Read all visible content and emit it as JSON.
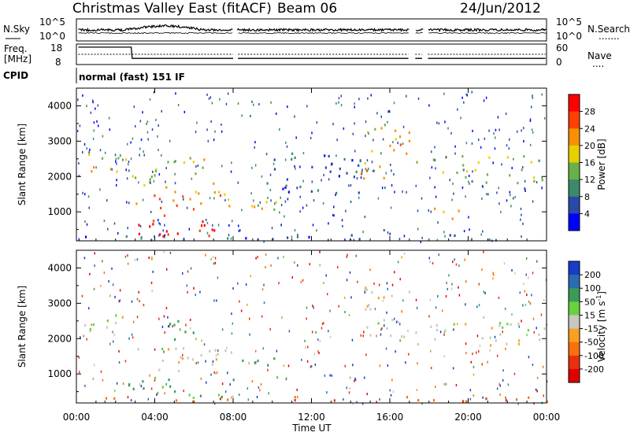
{
  "header": {
    "radar_title": "Christmas Valley East (fitACF)",
    "beam_label": "Beam 06",
    "date": "24/Jun/2012"
  },
  "nsky_panel": {
    "left_label": "N.Sky",
    "left_ticks": [
      "10^5",
      "10^0"
    ],
    "right_ticks": [
      "10^5",
      "10^0"
    ],
    "right_label": "N.Search",
    "right_legend_line": "......."
  },
  "freq_panel": {
    "left_label_1": "Freq.",
    "left_label_2": "[MHz]",
    "left_ticks": [
      "18",
      "8"
    ],
    "right_ticks": [
      "60",
      "0"
    ],
    "right_label": "Nave",
    "right_legend_line": "....",
    "freq_mhz": 11,
    "nave": 30
  },
  "cpid": {
    "label": "CPID",
    "mode": "normal (fast) 151 IF"
  },
  "power_panel": {
    "ylabel": "Slant Range [km]",
    "yticks": [
      "4000",
      "3000",
      "2000",
      "1000"
    ],
    "colorbar_label": "Power [dB]",
    "colorbar_ticks": [
      "28",
      "24",
      "20",
      "16",
      "12",
      "8",
      "4"
    ],
    "colors": [
      "#0000ff",
      "#2a4aa8",
      "#3c8a6a",
      "#6ab04a",
      "#e8d000",
      "#f89000",
      "#ff4000",
      "#ff0000"
    ]
  },
  "velocity_panel": {
    "ylabel": "Slant Range [km]",
    "yticks": [
      "4000",
      "3000",
      "2000",
      "1000"
    ],
    "colorbar_label": "Velocity [m s",
    "colorbar_label_sup": "-1",
    "colorbar_label_end": "]",
    "colorbar_ticks": [
      "200",
      "100",
      "50",
      "15",
      "-15",
      "-50",
      "-100",
      "-200"
    ],
    "colors": [
      "#1a3cc8",
      "#2a6cb0",
      "#3a9a5a",
      "#6ad040",
      "#c8c8c0",
      "#f8a020",
      "#f87010",
      "#e83010",
      "#e00000"
    ]
  },
  "xaxis": {
    "label": "Time UT",
    "ticks": [
      "00:00",
      "04:00",
      "08:00",
      "12:00",
      "16:00",
      "20:00",
      "00:00"
    ]
  },
  "chart_data": [
    {
      "type": "heatmap",
      "quantity": "Power",
      "unit": "dB",
      "x_range_hours": [
        0,
        24
      ],
      "y_range_km": [
        180,
        4500
      ],
      "color_range": [
        0,
        30
      ],
      "data_gaps_hours": [
        [
          8.0,
          8.2
        ],
        [
          17.0,
          17.3
        ],
        [
          17.7,
          17.95
        ]
      ],
      "echo_bands": [
        {
          "t0": 0.2,
          "t1": 2.5,
          "r0": 2000,
          "r1": 2700,
          "power": 16
        },
        {
          "t0": 2.5,
          "t1": 4.0,
          "r0": 1700,
          "r1": 2400,
          "power": 12
        },
        {
          "t0": 3.0,
          "t1": 8.0,
          "r0": 1000,
          "r1": 1800,
          "power": 22
        },
        {
          "t0": 4.0,
          "t1": 7.0,
          "r0": 2000,
          "r1": 2600,
          "power": 14
        },
        {
          "t0": 2.5,
          "t1": 8.0,
          "r0": 300,
          "r1": 900,
          "power": 28
        },
        {
          "t0": 8.2,
          "t1": 10.3,
          "r0": 900,
          "r1": 1500,
          "power": 16
        },
        {
          "t0": 9.5,
          "t1": 14.5,
          "r0": 1500,
          "r1": 2700,
          "power": 6
        },
        {
          "t0": 14.5,
          "t1": 17.0,
          "r0": 1900,
          "r1": 3600,
          "power": 18
        },
        {
          "t0": 17.3,
          "t1": 24.0,
          "r0": 1800,
          "r1": 2600,
          "power": 14
        },
        {
          "t0": 18.2,
          "t1": 19.8,
          "r0": 700,
          "r1": 1100,
          "power": 22
        },
        {
          "t0": 0.0,
          "t1": 24.0,
          "r0": 200,
          "r1": 350,
          "power": 6
        }
      ]
    },
    {
      "type": "heatmap",
      "quantity": "Velocity",
      "unit": "m/s",
      "x_range_hours": [
        0,
        24
      ],
      "y_range_km": [
        180,
        4500
      ],
      "color_range": [
        -200,
        200
      ],
      "data_gaps_hours": [
        [
          8.0,
          8.2
        ],
        [
          17.0,
          17.3
        ],
        [
          17.7,
          17.95
        ]
      ],
      "echo_bands": [
        {
          "t0": 0.2,
          "t1": 2.5,
          "r0": 2000,
          "r1": 2700,
          "velocity": 0
        },
        {
          "t0": 3.0,
          "t1": 8.0,
          "r0": 1000,
          "r1": 1800,
          "velocity": 0
        },
        {
          "t0": 4.5,
          "t1": 6.5,
          "r0": 1900,
          "r1": 2600,
          "velocity": 40
        },
        {
          "t0": 2.5,
          "t1": 8.0,
          "r0": 300,
          "r1": 900,
          "velocity": 30
        },
        {
          "t0": 8.2,
          "t1": 10.3,
          "r0": 900,
          "r1": 1500,
          "velocity": 40
        },
        {
          "t0": 14.5,
          "t1": 17.0,
          "r0": 1900,
          "r1": 3600,
          "velocity": 0
        },
        {
          "t0": 17.3,
          "t1": 24.0,
          "r0": 1800,
          "r1": 2600,
          "velocity": 0
        },
        {
          "t0": 0.0,
          "t1": 24.0,
          "r0": 200,
          "r1": 350,
          "velocity": -60
        }
      ]
    }
  ]
}
